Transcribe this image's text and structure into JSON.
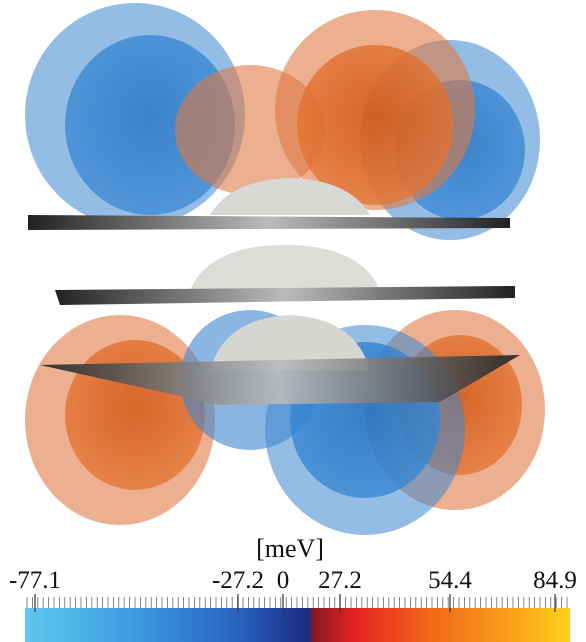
{
  "colorbar": {
    "label": "[meV]",
    "ticks": [
      -77.1,
      -27.2,
      0,
      27.2,
      54.4,
      84.9
    ]
  }
}
